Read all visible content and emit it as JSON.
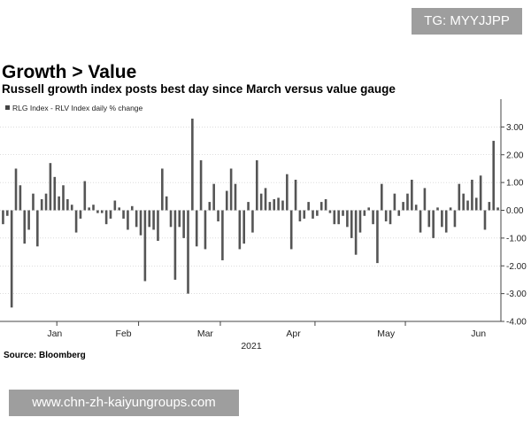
{
  "watermark_top": "TG: MYYJJPP",
  "watermark_bottom": "www.chn-zh-kaiyungroups.com",
  "title": "Growth > Value",
  "subtitle": "Russell growth index posts best day since March versus value gauge",
  "source": "Source: Bloomberg",
  "colors": {
    "bar": "#555555",
    "axis": "#444444",
    "grid": "#bbbbbb",
    "watermark": "#9e9e9e"
  },
  "chart_data": {
    "type": "bar",
    "title": "Growth > Value",
    "legend": "RLG Index - RLV Index daily % change",
    "legend_position": "top-left",
    "xlabel": "2021",
    "ylabel": "",
    "ylim": [
      -4.0,
      4.0
    ],
    "yticks": [
      3.0,
      2.0,
      1.0,
      0.0,
      -1.0,
      -2.0,
      -3.0,
      -4.0
    ],
    "ytick_labels": [
      "3.00",
      "2.00",
      "1.00",
      "0.00",
      "-1.00",
      "-2.00",
      "-3.00",
      "-4.00"
    ],
    "months": [
      {
        "label": "Jan",
        "index": 13
      },
      {
        "label": "Feb",
        "index": 32
      },
      {
        "label": "Mar",
        "index": 51
      },
      {
        "label": "Apr",
        "index": 73
      },
      {
        "label": "May",
        "index": 94
      },
      {
        "label": "Jun",
        "index": 117
      }
    ],
    "year_label": "2021",
    "values": [
      -0.5,
      -0.2,
      -3.5,
      1.5,
      0.9,
      -1.2,
      -0.7,
      0.6,
      -1.3,
      0.4,
      0.6,
      1.7,
      1.2,
      0.5,
      0.9,
      0.4,
      0.2,
      -0.8,
      -0.3,
      1.05,
      0.1,
      0.2,
      -0.1,
      -0.1,
      -0.5,
      -0.3,
      0.35,
      0.1,
      -0.3,
      -0.7,
      0.15,
      -0.6,
      -0.9,
      -2.55,
      -0.6,
      -0.7,
      -1.1,
      1.5,
      0.5,
      -0.6,
      -2.5,
      -0.6,
      -1.0,
      -3.0,
      3.3,
      -1.3,
      1.8,
      -1.4,
      0.3,
      0.95,
      -0.4,
      -1.8,
      0.7,
      1.5,
      0.95,
      -1.4,
      -1.2,
      0.3,
      -0.8,
      1.8,
      0.6,
      0.8,
      0.3,
      0.4,
      0.45,
      0.35,
      1.3,
      -1.4,
      1.1,
      -0.4,
      -0.3,
      0.3,
      -0.3,
      -0.2,
      0.3,
      0.4,
      -0.1,
      -0.5,
      -0.5,
      -0.2,
      -0.6,
      -1.0,
      -1.6,
      -0.8,
      -0.2,
      0.1,
      -0.5,
      -1.9,
      0.95,
      -0.4,
      -0.5,
      0.6,
      -0.2,
      0.3,
      0.6,
      1.1,
      0.2,
      -0.8,
      0.8,
      -0.6,
      -1.0,
      0.1,
      -0.6,
      -0.8,
      0.1,
      -0.6,
      0.95,
      0.6,
      0.35,
      1.1,
      0.45,
      1.25,
      -0.7,
      0.3,
      2.5,
      0.1
    ]
  }
}
